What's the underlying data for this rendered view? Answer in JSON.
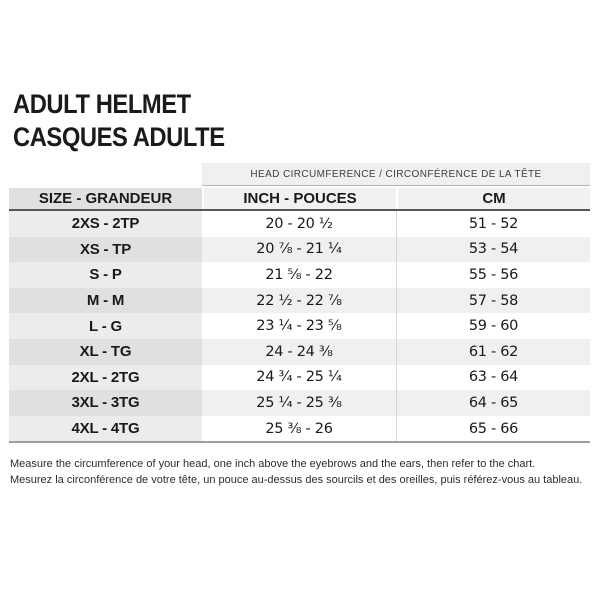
{
  "title": {
    "line1": "ADULT HELMET",
    "line2": "CASQUES ADULTE"
  },
  "chart_data": {
    "type": "table",
    "title": "ADULT HELMET / CASQUES ADULTE",
    "group_header": "HEAD CIRCUMFERENCE / CIRCONFÉRENCE DE LA TÊTE",
    "columns": [
      "SIZE - GRANDEUR",
      "INCH - POUCES",
      "CM"
    ],
    "rows": [
      {
        "size": "2XS - 2TP",
        "inch": "20 - 20 ½",
        "cm": "51 - 52"
      },
      {
        "size": "XS - TP",
        "inch": "20 ⅞ - 21 ¼",
        "cm": "53 - 54"
      },
      {
        "size": "S - P",
        "inch": "21 ⅝ - 22",
        "cm": "55 - 56"
      },
      {
        "size": "M - M",
        "inch": "22 ½ - 22 ⅞",
        "cm": "57 - 58"
      },
      {
        "size": "L - G",
        "inch": "23 ¼ - 23 ⅝",
        "cm": "59 - 60"
      },
      {
        "size": "XL - TG",
        "inch": "24 - 24 ⅜",
        "cm": "61 - 62"
      },
      {
        "size": "2XL - 2TG",
        "inch": "24 ¾ - 25 ¼",
        "cm": "63 - 64"
      },
      {
        "size": "3XL - 3TG",
        "inch": "25 ¼ - 25 ⅜",
        "cm": "64 - 65"
      },
      {
        "size": "4XL - 4TG",
        "inch": "25 ⅜ - 26",
        "cm": "65 - 66"
      }
    ]
  },
  "footer": {
    "line1": "Measure the circumference of your head, one inch above the eyebrows and the ears, then refer to the chart.",
    "line2": "Mesurez la circonférence de votre tête, un pouce au-dessus des sourcils et des oreilles, puis référez-vous au tableau."
  },
  "colors": {
    "text": "#1a1a1a",
    "banner_bg": "#f0f0f0",
    "header_size_bg": "#e0e0e0",
    "header_data_bg": "#f1f1f1",
    "row_odd_size_bg": "#ececec",
    "row_even_size_bg": "#e0e0e0",
    "row_even_data_bg": "#f0f0f0",
    "header_rule": "#57575a",
    "bottom_rule": "#9e9e9e"
  }
}
